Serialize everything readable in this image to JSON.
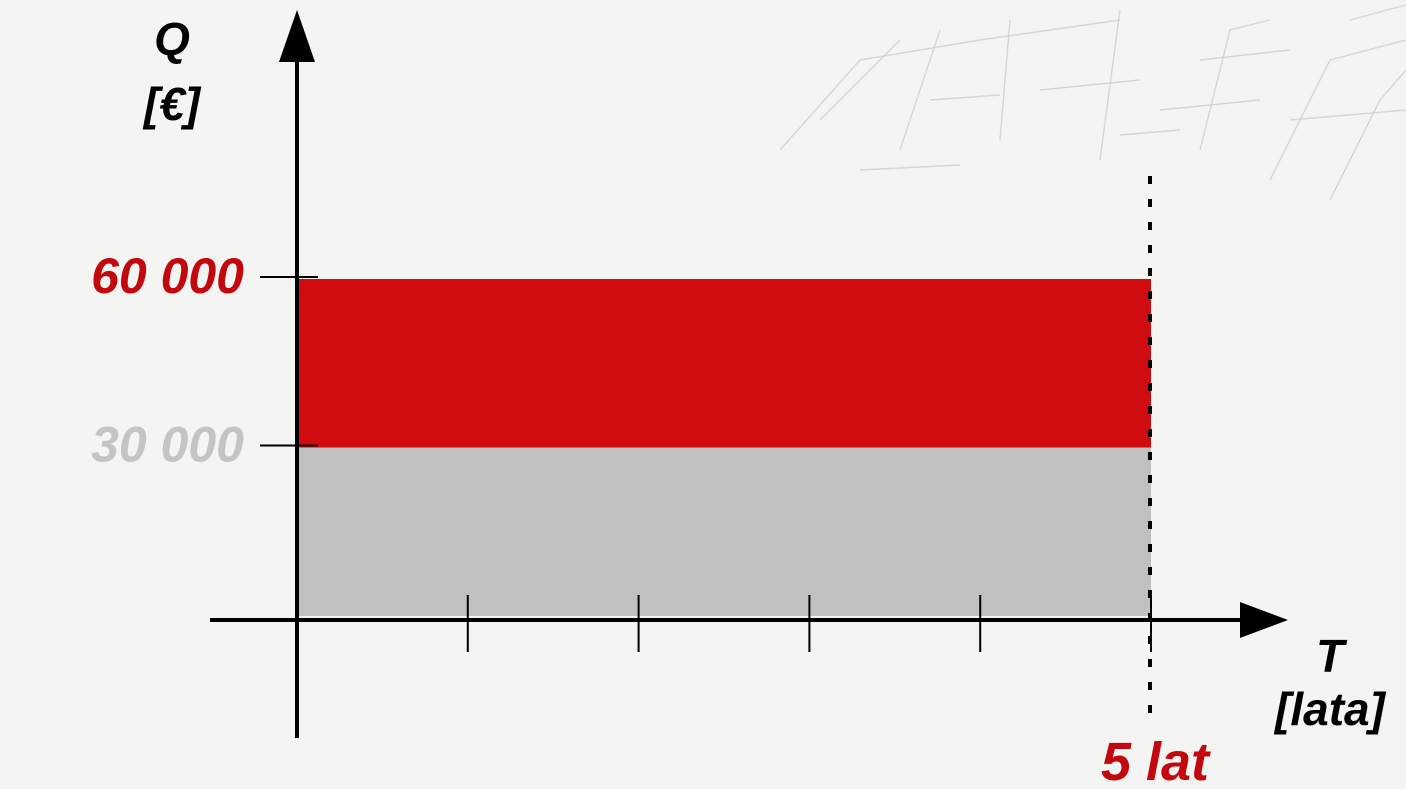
{
  "chart_data": {
    "type": "area",
    "ylabel": "Q",
    "ylabel_unit": "[€]",
    "xlabel": "T",
    "xlabel_unit": "[lata]",
    "xlim": [
      0,
      5
    ],
    "ylim": [
      0,
      60000
    ],
    "x_ticks": [
      1,
      2,
      3,
      4,
      5
    ],
    "y_tick_labels": [
      {
        "value": 30000,
        "label": "30 000",
        "color": "#c4c4c4"
      },
      {
        "value": 60000,
        "label": "60 000",
        "color": "#c2080e"
      }
    ],
    "series": [
      {
        "x": [
          0,
          5
        ],
        "y_from": [
          0,
          0
        ],
        "y_to": [
          30000,
          30000
        ],
        "color": "#c0c0c0"
      },
      {
        "x": [
          0,
          5
        ],
        "y_from": [
          30000,
          30000
        ],
        "y_to": [
          60000,
          60000
        ],
        "color": "#d00c10"
      }
    ],
    "annotations": [
      {
        "label": "5 lat",
        "x": 5,
        "color": "#c2080e",
        "dotted_line": true
      }
    ],
    "grid": false,
    "legend": "none"
  }
}
